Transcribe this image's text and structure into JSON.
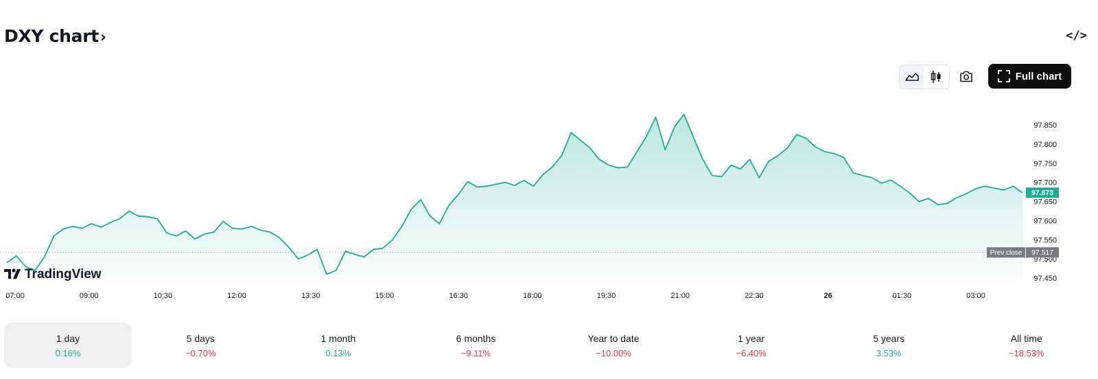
{
  "header": {
    "title": "DXY chart",
    "chevron": "›",
    "embed_icon": "code-icon",
    "embed_label": "</>"
  },
  "toolbar": {
    "line_icon": "area-chart-icon",
    "candle_icon": "candlestick-icon",
    "camera_icon": "camera-icon",
    "full_chart_label": "Full chart",
    "full_chart_icon": "fullscreen-icon"
  },
  "logo": {
    "text": "TradingView"
  },
  "chart_data": {
    "type": "area",
    "color": "#22ab94",
    "x_ticks": [
      "07:00",
      "09:00",
      "10:30",
      "12:00",
      "13:30",
      "15:00",
      "16:30",
      "18:00",
      "19:30",
      "21:00",
      "22:30",
      "26",
      "01:30",
      "03:00"
    ],
    "y_ticks": [
      "97.850",
      "97.800",
      "97.750",
      "97.700",
      "97.650",
      "97.600",
      "97.550",
      "97.500",
      "97.450"
    ],
    "ylim": [
      97.45,
      97.85
    ],
    "prev_close": {
      "label": "Prev close",
      "value": "97.517"
    },
    "last_price": "97.673",
    "series": [
      {
        "values": [
          97.49,
          97.508,
          97.48,
          97.47,
          97.505,
          97.56,
          97.578,
          97.585,
          97.58,
          97.592,
          97.583,
          97.595,
          97.605,
          97.625,
          97.612,
          97.61,
          97.605,
          97.568,
          97.56,
          97.573,
          97.552,
          97.565,
          97.57,
          97.598,
          97.58,
          97.578,
          97.585,
          97.575,
          97.57,
          97.555,
          97.53,
          97.5,
          97.51,
          97.525,
          97.46,
          97.47,
          97.52,
          97.512,
          97.505,
          97.525,
          97.528,
          97.55,
          97.585,
          97.63,
          97.655,
          97.612,
          97.592,
          97.64,
          97.668,
          97.702,
          97.688,
          97.69,
          97.695,
          97.7,
          97.692,
          97.705,
          97.69,
          97.72,
          97.74,
          97.77,
          97.83,
          97.81,
          97.79,
          97.76,
          97.745,
          97.738,
          97.74,
          97.78,
          97.82,
          97.87,
          97.785,
          97.845,
          97.878,
          97.818,
          97.76,
          97.718,
          97.715,
          97.745,
          97.735,
          97.76,
          97.712,
          97.755,
          97.77,
          97.79,
          97.825,
          97.815,
          97.792,
          97.78,
          97.775,
          97.765,
          97.725,
          97.718,
          97.712,
          97.698,
          97.706,
          97.69,
          97.672,
          97.65,
          97.658,
          97.642,
          97.645,
          97.66,
          97.67,
          97.683,
          97.69,
          97.685,
          97.68,
          97.69,
          97.673
        ]
      }
    ]
  },
  "timeframes": [
    {
      "label": "1 day",
      "change": "0.16%",
      "dir": "pos"
    },
    {
      "label": "5 days",
      "change": "−0.70%",
      "dir": "neg"
    },
    {
      "label": "1 month",
      "change": "0.13%",
      "dir": "pos"
    },
    {
      "label": "6 months",
      "change": "−9.11%",
      "dir": "neg"
    },
    {
      "label": "Year to date",
      "change": "−10.00%",
      "dir": "neg"
    },
    {
      "label": "1 year",
      "change": "−6.40%",
      "dir": "neg"
    },
    {
      "label": "5 years",
      "change": "3.53%",
      "dir": "pos"
    },
    {
      "label": "All time",
      "change": "−18.53%",
      "dir": "neg"
    }
  ]
}
